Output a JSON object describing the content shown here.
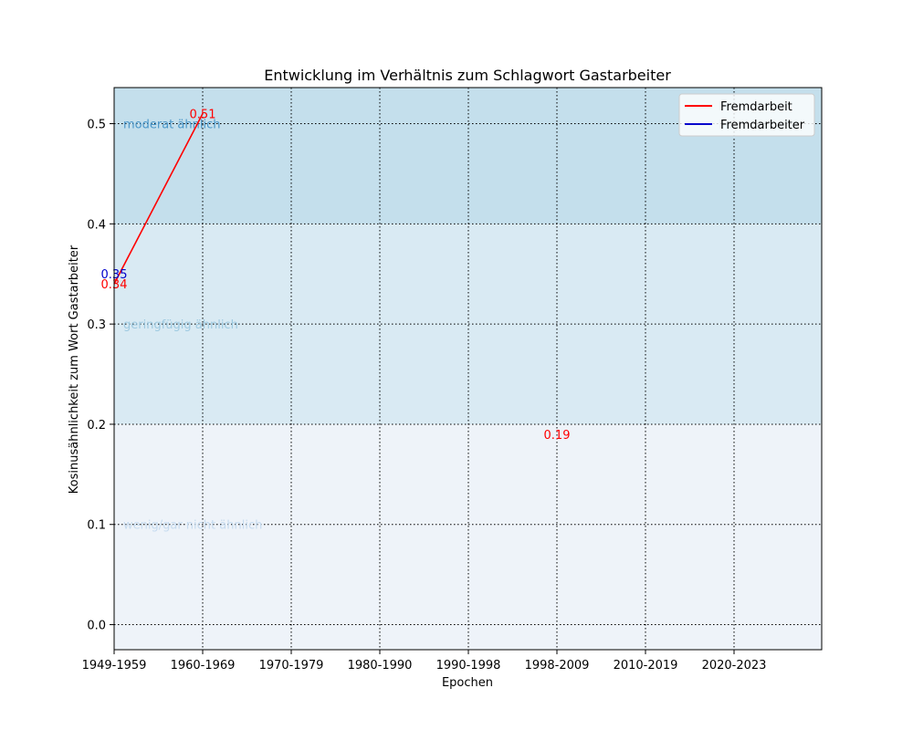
{
  "chart_data": {
    "type": "line",
    "title": "Entwicklung im Verhältnis zum Schlagwort Gastarbeiter",
    "xlabel": "Epochen",
    "ylabel": "Kosinusähnlichkeit zum Wort Gastarbeiter",
    "categories": [
      "1949-1959",
      "1960-1969",
      "1970-1979",
      "1980-1990",
      "1990-1998",
      "1998-2009",
      "2010-2019",
      "2020-2023"
    ],
    "ylim": [
      -0.025,
      0.536
    ],
    "yticks": [
      "0.0",
      "0.1",
      "0.2",
      "0.3",
      "0.4",
      "0.5"
    ],
    "grid": true,
    "legend_position": "top-right",
    "bands": [
      {
        "from": -0.025,
        "to": 0.2,
        "color": "#eef3f9",
        "label": "wenig/gar nicht ähnlich",
        "label_y": 0.1,
        "label_color": "#c6dbef"
      },
      {
        "from": 0.2,
        "to": 0.4,
        "color": "#d9eaf3",
        "label": "geringfügig ähnlich",
        "label_y": 0.3,
        "label_color": "#9ecae1"
      },
      {
        "from": 0.4,
        "to": 0.536,
        "color": "#c4dfec",
        "label": "moderat ähnlich",
        "label_y": 0.5,
        "label_color": "#4b97c9"
      }
    ],
    "series": [
      {
        "name": "Fremdarbeit",
        "color": "#ff0000",
        "values": [
          0.34,
          0.51,
          null,
          null,
          null,
          0.19,
          null,
          null
        ],
        "labels": [
          "0.34",
          "0.51",
          null,
          null,
          null,
          "0.19",
          null,
          null
        ]
      },
      {
        "name": "Fremdarbeiter",
        "color": "#0000cc",
        "values": [
          0.35,
          null,
          null,
          null,
          null,
          null,
          null,
          null
        ],
        "labels": [
          "0.35",
          null,
          null,
          null,
          null,
          null,
          null,
          null
        ]
      }
    ]
  }
}
